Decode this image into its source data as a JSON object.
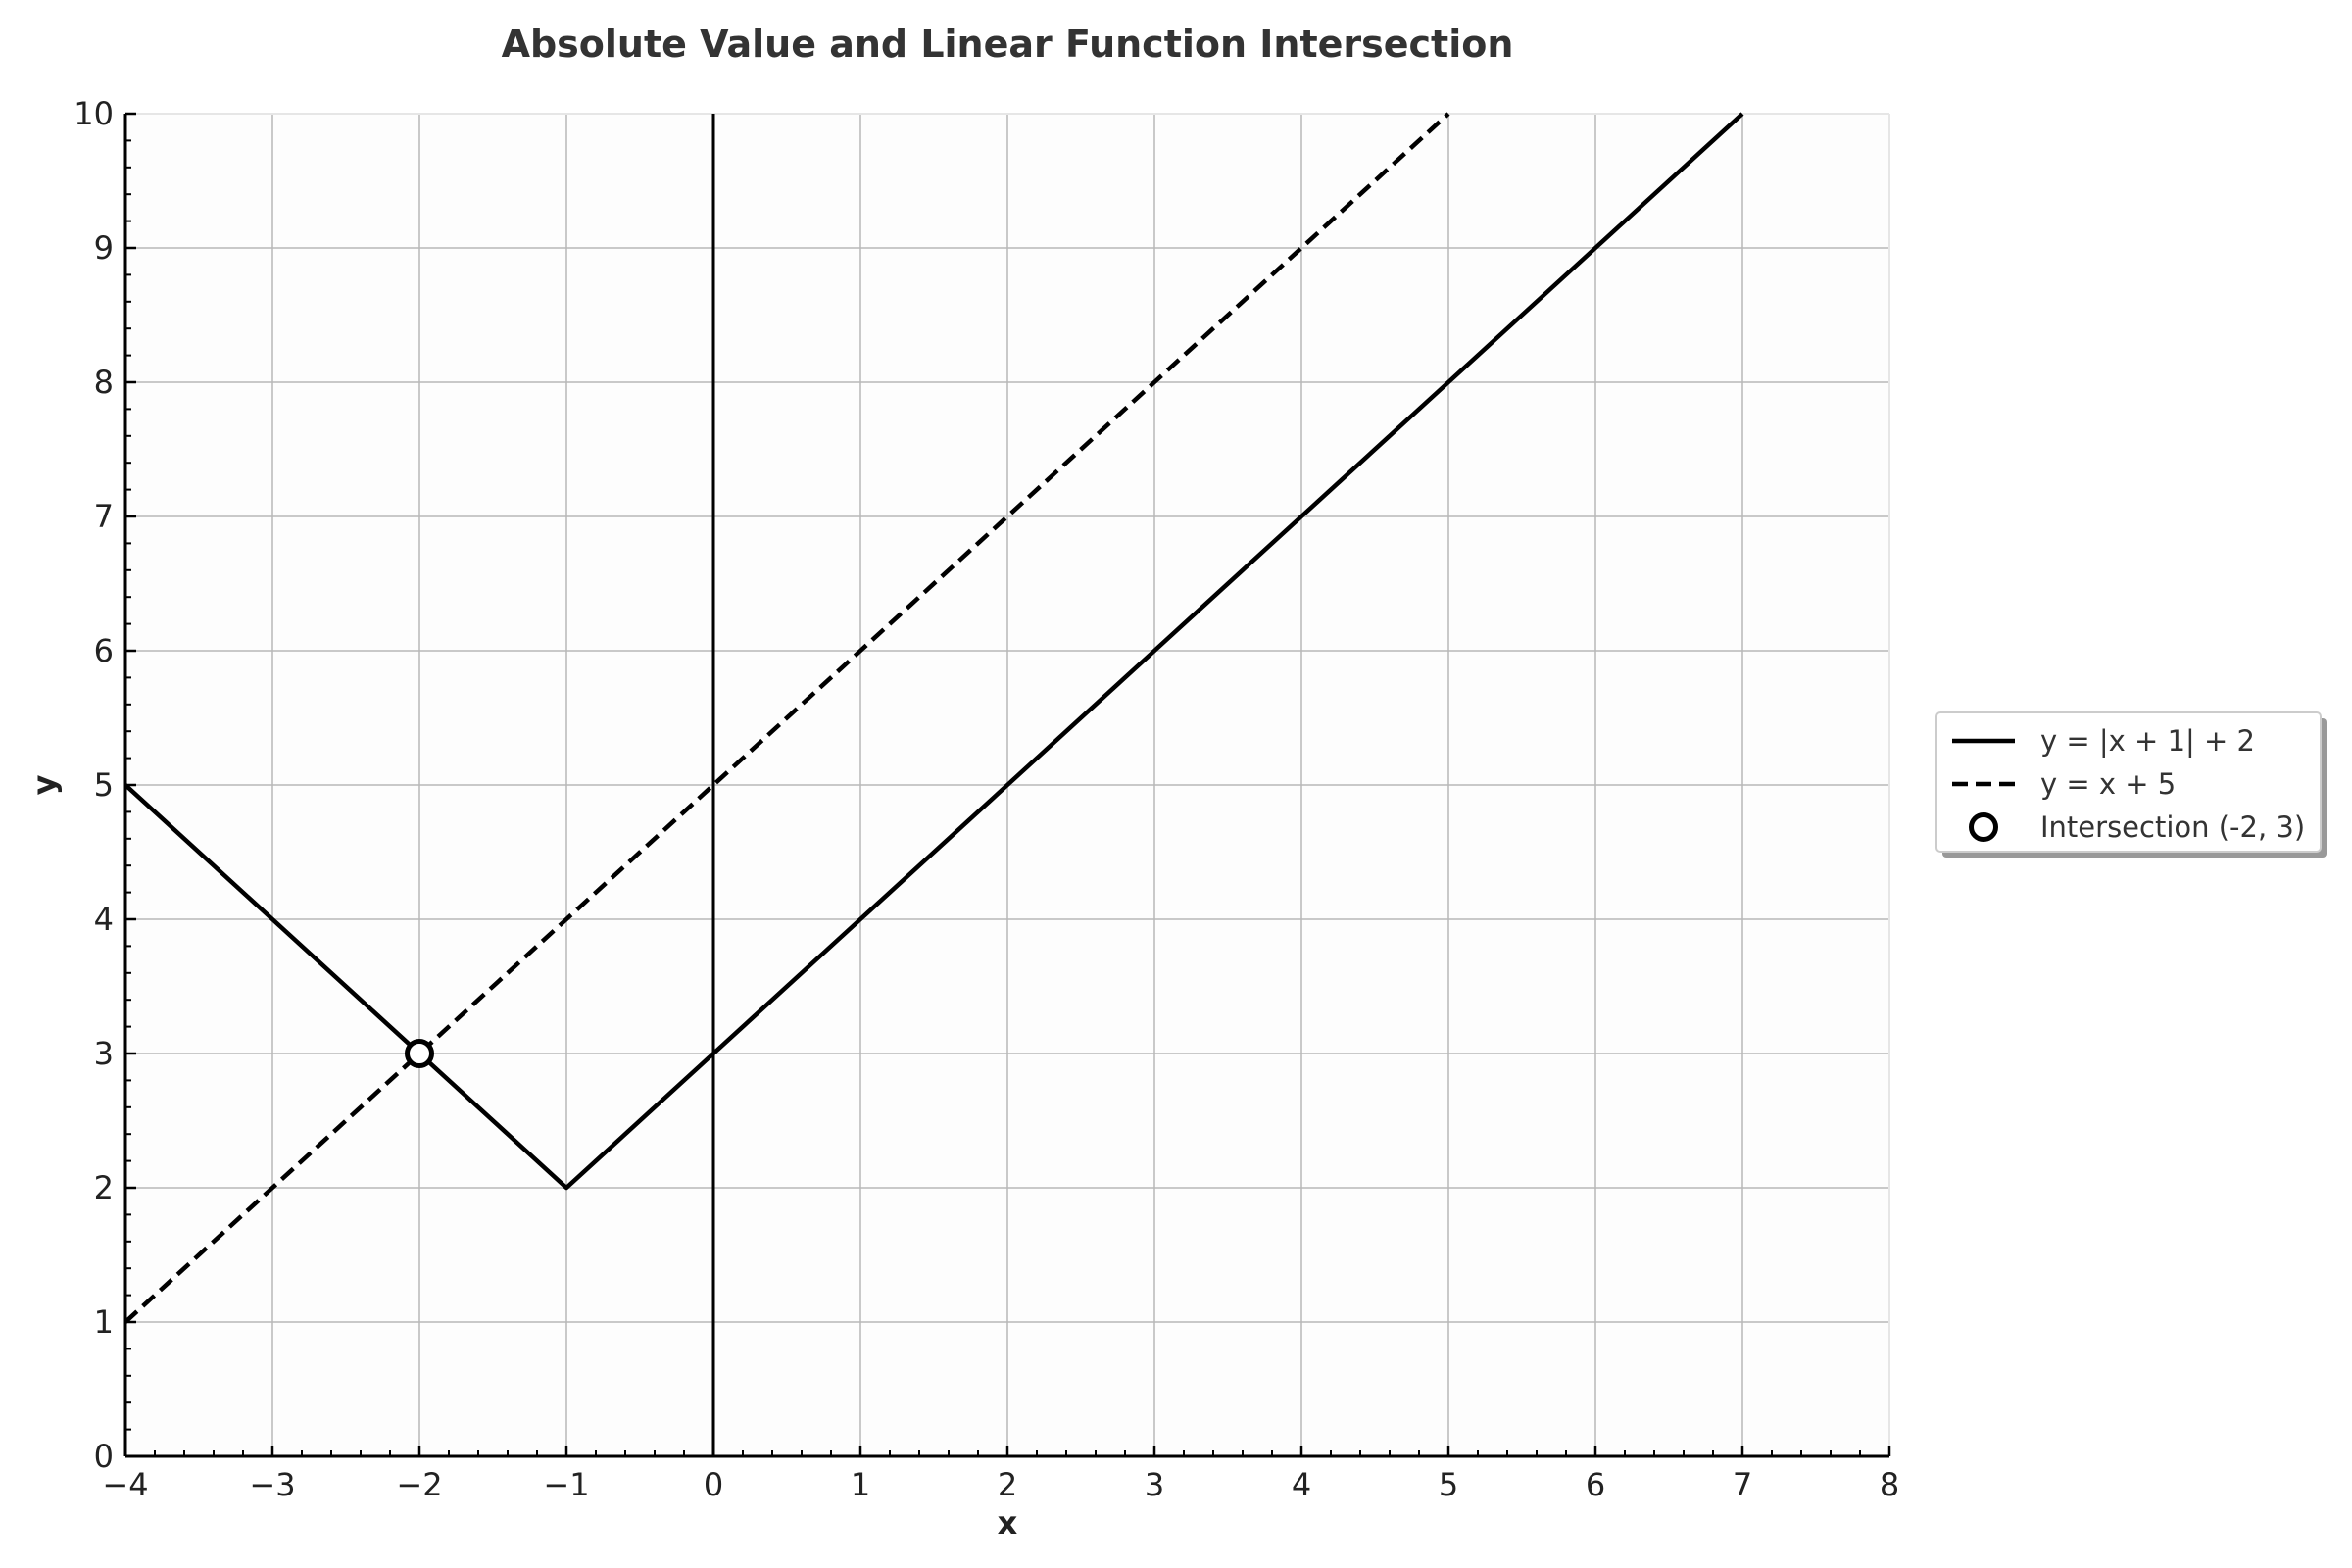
{
  "chart_data": {
    "type": "line",
    "title": "Absolute Value and Linear Function Intersection",
    "xlabel": "x",
    "ylabel": "y",
    "xlim": [
      -4,
      8
    ],
    "ylim": [
      0,
      10
    ],
    "x_ticks": [
      "−4",
      "−3",
      "−2",
      "−1",
      "0",
      "1",
      "2",
      "3",
      "4",
      "5",
      "6",
      "7",
      "8"
    ],
    "x_tick_values": [
      -4,
      -3,
      -2,
      -1,
      0,
      1,
      2,
      3,
      4,
      5,
      6,
      7,
      8
    ],
    "y_ticks": [
      "0",
      "1",
      "2",
      "3",
      "4",
      "5",
      "6",
      "7",
      "8",
      "9",
      "10"
    ],
    "y_tick_values": [
      0,
      1,
      2,
      3,
      4,
      5,
      6,
      7,
      8,
      9,
      10
    ],
    "grid": true,
    "legend_position": "right",
    "series": [
      {
        "name": "y = |x + 1| + 2",
        "style": "solid",
        "color": "#000000",
        "points": [
          [
            -4,
            5
          ],
          [
            -3,
            4
          ],
          [
            -2,
            3
          ],
          [
            -1,
            2
          ],
          [
            0,
            3
          ],
          [
            1,
            4
          ],
          [
            2,
            5
          ],
          [
            3,
            6
          ],
          [
            4,
            7
          ],
          [
            5,
            8
          ],
          [
            6,
            9
          ],
          [
            7,
            10
          ]
        ]
      },
      {
        "name": "y = x + 5",
        "style": "dashed",
        "color": "#000000",
        "points": [
          [
            -4,
            1
          ],
          [
            -3,
            2
          ],
          [
            -2,
            3
          ],
          [
            -1,
            4
          ],
          [
            0,
            5
          ],
          [
            1,
            6
          ],
          [
            2,
            7
          ],
          [
            3,
            8
          ],
          [
            4,
            9
          ],
          [
            5,
            10
          ]
        ]
      }
    ],
    "markers": [
      {
        "name": "Intersection (-2, 3)",
        "x": -2,
        "y": 3,
        "style": "open-circle"
      }
    ],
    "vertical_reference_line": {
      "x": 0
    }
  }
}
